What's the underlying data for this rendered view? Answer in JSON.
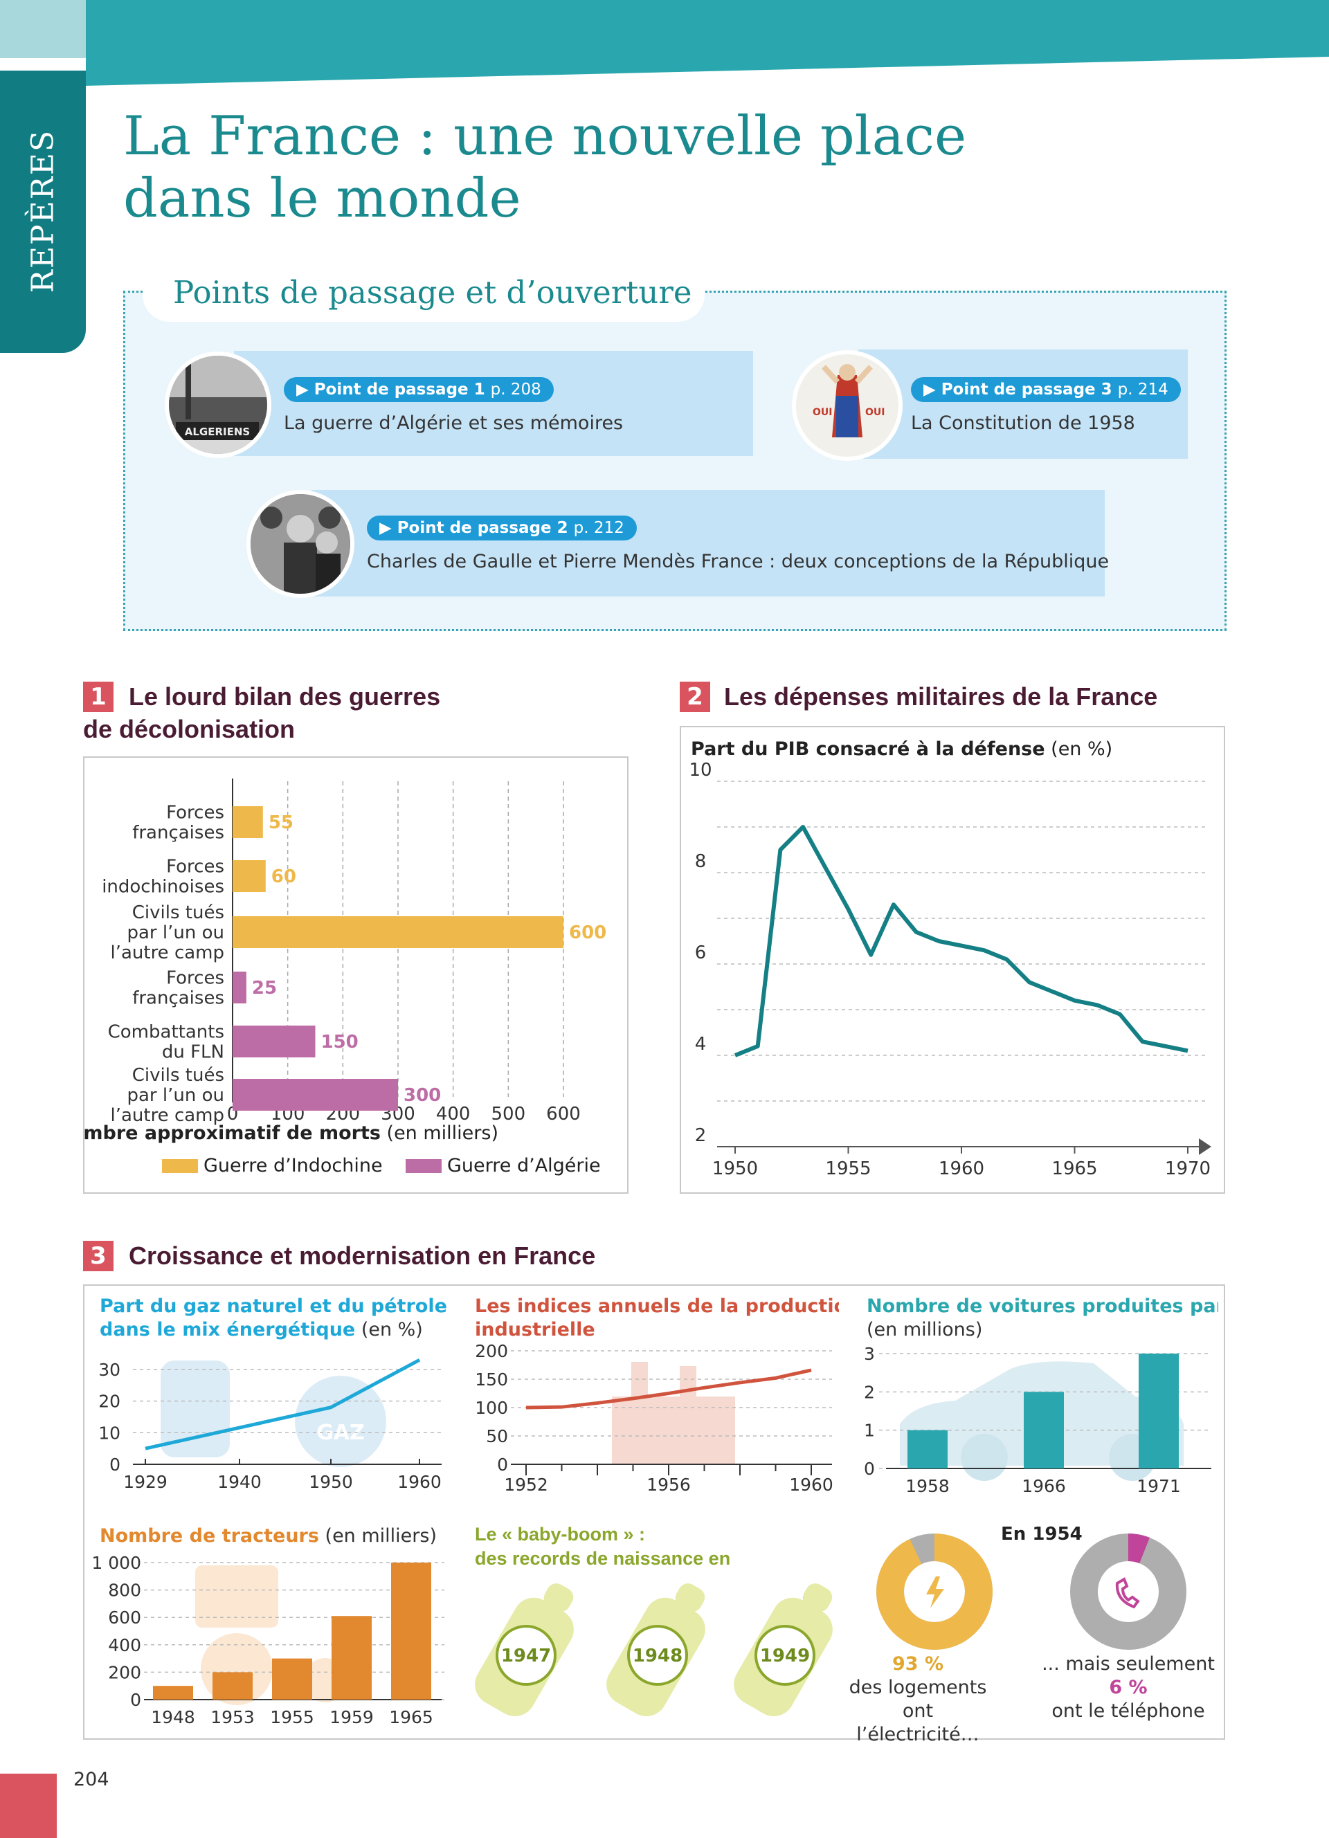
{
  "sidebar_label": "REPÈRES",
  "title_line1": "La France : une nouvelle place",
  "title_line2": "dans le monde",
  "points": {
    "heading": "Points de passage et d’ouverture",
    "items": [
      {
        "badge": "Point de passage 1",
        "page": "p. 208",
        "text": "La guerre d’Algérie et ses mémoires"
      },
      {
        "badge": "Point de passage 3",
        "page": "p. 214",
        "text": "La Constitution de 1958"
      },
      {
        "badge": "Point de passage 2",
        "page": "p. 212",
        "text": "Charles de Gaulle et Pierre Mendès France : deux conceptions de la République"
      }
    ],
    "poster_text": [
      "OUI",
      "OUI"
    ]
  },
  "section1": {
    "number": "1",
    "title_line1": "Le lourd bilan des guerres",
    "title_line2": "de décolonisation"
  },
  "section2": {
    "number": "2",
    "title": "Les dépenses militaires de la France"
  },
  "section3": {
    "number": "3",
    "title": "Croissance et modernisation en France"
  },
  "page_number": "204",
  "colors": {
    "teal": "#2aa7ae",
    "dark_teal": "#117d82",
    "indochine": "#efb84a",
    "algerie": "#bd6da5",
    "line_red": "#d0543d",
    "tractor": "#e2882e",
    "cars": "#2aa7ae",
    "gas": "#1ea8d8",
    "babyboom": "#8aa62b"
  },
  "chart_data": [
    {
      "type": "bar",
      "orientation": "horizontal",
      "categories": [
        "Forces\nfrançaises",
        "Forces\nindochinoises",
        "Civils tués\npar l’un ou\nl’autre camp",
        "Forces\nfrançaises",
        "Combattants\ndu FLN",
        "Civils tués\npar l’un ou\nl’autre camp"
      ],
      "values": [
        55,
        60,
        600,
        25,
        150,
        300
      ],
      "value_labels": [
        "55",
        "60",
        "600",
        "25",
        "150",
        "300"
      ],
      "groups": [
        "Guerre d’Indochine",
        "Guerre d’Indochine",
        "Guerre d’Indochine",
        "Guerre d’Algérie",
        "Guerre d’Algérie",
        "Guerre d’Algérie"
      ],
      "xticks": [
        0,
        100,
        200,
        300,
        400,
        500,
        600
      ],
      "xlim": [
        0,
        600
      ],
      "xlabel_bold": "Nombre approximatif de morts",
      "xlabel_rest": " (en milliers)",
      "legend": [
        "Guerre d’Indochine",
        "Guerre d’Algérie"
      ],
      "legend_position": "bottom",
      "grid": true
    },
    {
      "type": "line",
      "title_bold": "Part du PIB consacré à la défense",
      "title_rest": " (en %)",
      "x": [
        1950,
        1951,
        1952,
        1953,
        1954,
        1955,
        1956,
        1957,
        1958,
        1959,
        1960,
        1961,
        1962,
        1963,
        1964,
        1965,
        1966,
        1967,
        1968,
        1969,
        1970
      ],
      "y": [
        4.0,
        4.2,
        8.5,
        9.0,
        8.1,
        7.2,
        6.2,
        7.3,
        6.7,
        6.5,
        6.4,
        6.3,
        6.1,
        5.6,
        5.4,
        5.2,
        5.1,
        4.9,
        4.3,
        4.2,
        4.1
      ],
      "xticks": [
        1950,
        1955,
        1960,
        1965,
        1970
      ],
      "yticks": [
        2,
        4,
        6,
        8,
        10
      ],
      "xlim": [
        1950,
        1970
      ],
      "ylim": [
        2,
        10
      ],
      "grid": true
    },
    {
      "type": "line",
      "title_bold": "Part du gaz naturel et du pétrole dans le mix énergétique",
      "title_rest": " (en %)",
      "x": [
        1929,
        1950,
        1960
      ],
      "y": [
        5,
        18,
        33
      ],
      "xticks": [
        1929,
        1940,
        1950,
        1960
      ],
      "yticks": [
        0,
        10,
        20,
        30
      ],
      "ylim": [
        0,
        35
      ],
      "icon_label": "GAZ"
    },
    {
      "type": "line",
      "title": "Les indices annuels de la production industrielle",
      "x": [
        1952,
        1953,
        1954,
        1955,
        1956,
        1957,
        1958,
        1959,
        1960
      ],
      "y": [
        100,
        101,
        108,
        116,
        125,
        135,
        144,
        152,
        166
      ],
      "xticks": [
        1952,
        1956,
        1960
      ],
      "yticks": [
        0,
        50,
        100,
        150,
        200
      ],
      "ylim": [
        0,
        200
      ]
    },
    {
      "type": "bar",
      "title_bold": "Nombre de voitures produites par an",
      "title_rest": "(en millions)",
      "categories": [
        "1958",
        "1966",
        "1971"
      ],
      "values": [
        1.0,
        2.0,
        3.0
      ],
      "yticks": [
        0,
        1,
        2,
        3
      ],
      "ylim": [
        0,
        3
      ]
    },
    {
      "type": "bar",
      "title_bold": "Nombre de tracteurs",
      "title_rest": " (en milliers)",
      "categories": [
        "1948",
        "1953",
        "1955",
        "1959",
        "1965"
      ],
      "values": [
        100,
        200,
        300,
        610,
        1000
      ],
      "yticks": [
        0,
        200,
        400,
        600,
        800,
        1000
      ],
      "ytick_labels": [
        "0",
        "200",
        "400",
        "600",
        "800",
        "1 000"
      ],
      "ylim": [
        0,
        1000
      ]
    },
    {
      "type": "pie",
      "heading": "En 1954",
      "slices": [
        {
          "name": "des logements ont l’électricité…",
          "value": 93,
          "label": "93 %",
          "line1": "des logements",
          "line2": "ont l’électricité…"
        },
        {
          "name": "... mais seulement ont le téléphone",
          "value": 6,
          "label": "6 %",
          "pre": "... mais seulement",
          "line2": "ont le téléphone"
        }
      ]
    }
  ],
  "babyboom": {
    "title_line1": "Le « baby-boom » :",
    "title_line2": "des records de naissance en",
    "years": [
      "1947",
      "1948",
      "1949"
    ]
  }
}
